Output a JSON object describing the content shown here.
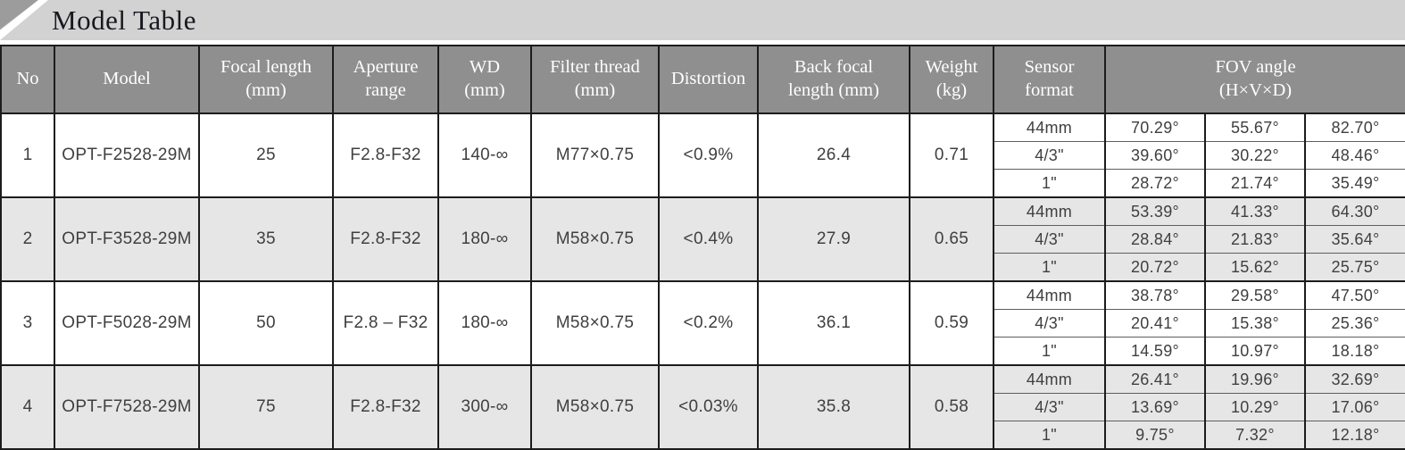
{
  "page": {
    "title": "Model Table"
  },
  "colors": {
    "banner_bg": "#d2d2d2",
    "corner_decoration": "#9c9c9c",
    "header_bg": "#8f8f8f",
    "header_text": "#ffffff",
    "alt_row_bg": "#e6e6e6",
    "border": "#1c1c1c",
    "body_text": "#3f3f3f",
    "title_text": "#181820"
  },
  "table": {
    "columns": [
      {
        "key": "no",
        "label": "No"
      },
      {
        "key": "model",
        "label": "Model"
      },
      {
        "key": "focal_length",
        "label": "Focal length\n(mm)"
      },
      {
        "key": "aperture_range",
        "label": "Aperture\nrange"
      },
      {
        "key": "wd",
        "label": "WD\n(mm)"
      },
      {
        "key": "filter_thread",
        "label": "Filter thread\n(mm)"
      },
      {
        "key": "distortion",
        "label": "Distortion"
      },
      {
        "key": "back_focal_length",
        "label": "Back focal\nlength (mm)"
      },
      {
        "key": "weight",
        "label": "Weight\n(kg)"
      },
      {
        "key": "sensor_format",
        "label": "Sensor\nformat"
      },
      {
        "key": "fov_angle",
        "label": "FOV angle\n(H×V×D)",
        "colspan": 3
      }
    ],
    "rows": [
      {
        "no": "1",
        "model": "OPT-F2528-29M",
        "focal_length": "25",
        "aperture_range": "F2.8-F32",
        "wd": "140-∞",
        "filter_thread": "M77×0.75",
        "distortion": "<0.9%",
        "back_focal_length": "26.4",
        "weight": "0.71",
        "fov": [
          {
            "sensor_format": "44mm",
            "h": "70.29°",
            "v": "55.67°",
            "d": "82.70°"
          },
          {
            "sensor_format": "4/3\"",
            "h": "39.60°",
            "v": "30.22°",
            "d": "48.46°"
          },
          {
            "sensor_format": "1\"",
            "h": "28.72°",
            "v": "21.74°",
            "d": "35.49°"
          }
        ]
      },
      {
        "no": "2",
        "model": "OPT-F3528-29M",
        "focal_length": "35",
        "aperture_range": "F2.8-F32",
        "wd": "180-∞",
        "filter_thread": "M58×0.75",
        "distortion": "<0.4%",
        "back_focal_length": "27.9",
        "weight": "0.65",
        "fov": [
          {
            "sensor_format": "44mm",
            "h": "53.39°",
            "v": "41.33°",
            "d": "64.30°"
          },
          {
            "sensor_format": "4/3\"",
            "h": "28.84°",
            "v": "21.83°",
            "d": "35.64°"
          },
          {
            "sensor_format": "1\"",
            "h": "20.72°",
            "v": "15.62°",
            "d": "25.75°"
          }
        ]
      },
      {
        "no": "3",
        "model": "OPT-F5028-29M",
        "focal_length": "50",
        "aperture_range": "F2.8 – F32",
        "wd": "180-∞",
        "filter_thread": "M58×0.75",
        "distortion": "<0.2%",
        "back_focal_length": "36.1",
        "weight": "0.59",
        "fov": [
          {
            "sensor_format": "44mm",
            "h": "38.78°",
            "v": "29.58°",
            "d": "47.50°"
          },
          {
            "sensor_format": "4/3\"",
            "h": "20.41°",
            "v": "15.38°",
            "d": "25.36°"
          },
          {
            "sensor_format": "1\"",
            "h": "14.59°",
            "v": "10.97°",
            "d": "18.18°"
          }
        ]
      },
      {
        "no": "4",
        "model": "OPT-F7528-29M",
        "focal_length": "75",
        "aperture_range": "F2.8-F32",
        "wd": "300-∞",
        "filter_thread": "M58×0.75",
        "distortion": "<0.03%",
        "back_focal_length": "35.8",
        "weight": "0.58",
        "fov": [
          {
            "sensor_format": "44mm",
            "h": "26.41°",
            "v": "19.96°",
            "d": "32.69°"
          },
          {
            "sensor_format": "4/3\"",
            "h": "13.69°",
            "v": "10.29°",
            "d": "17.06°"
          },
          {
            "sensor_format": "1\"",
            "h": "9.75°",
            "v": "7.32°",
            "d": "12.18°"
          }
        ]
      }
    ]
  }
}
